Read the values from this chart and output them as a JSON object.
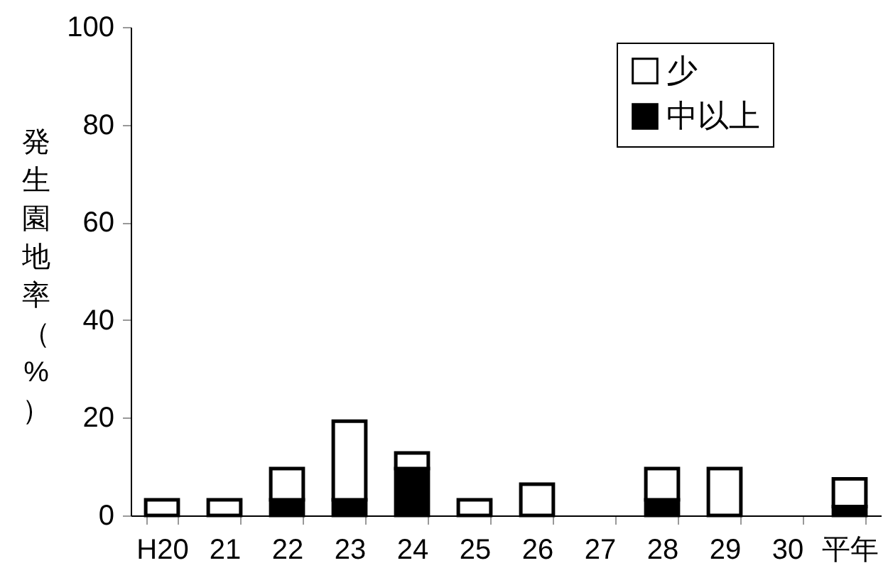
{
  "chart_data": {
    "type": "bar",
    "stacked": true,
    "ylabel": "発生園地率（%）",
    "categories": [
      "H20",
      "21",
      "22",
      "23",
      "24",
      "25",
      "26",
      "27",
      "28",
      "29",
      "30",
      "平年"
    ],
    "series": [
      {
        "name": "中以上",
        "color": "#000000",
        "values": [
          null,
          null,
          3.2,
          3.2,
          9.6,
          null,
          null,
          null,
          3.2,
          null,
          null,
          1.8
        ]
      },
      {
        "name": "少",
        "color": "#ffffff",
        "values": [
          3.2,
          3.2,
          6.4,
          16.1,
          3.2,
          3.2,
          6.4,
          null,
          6.4,
          9.6,
          null,
          5.7
        ]
      }
    ],
    "ylim": [
      0,
      100
    ],
    "yticks": [
      0,
      20,
      40,
      60,
      80,
      100
    ],
    "grid": false,
    "legend": "top right"
  }
}
